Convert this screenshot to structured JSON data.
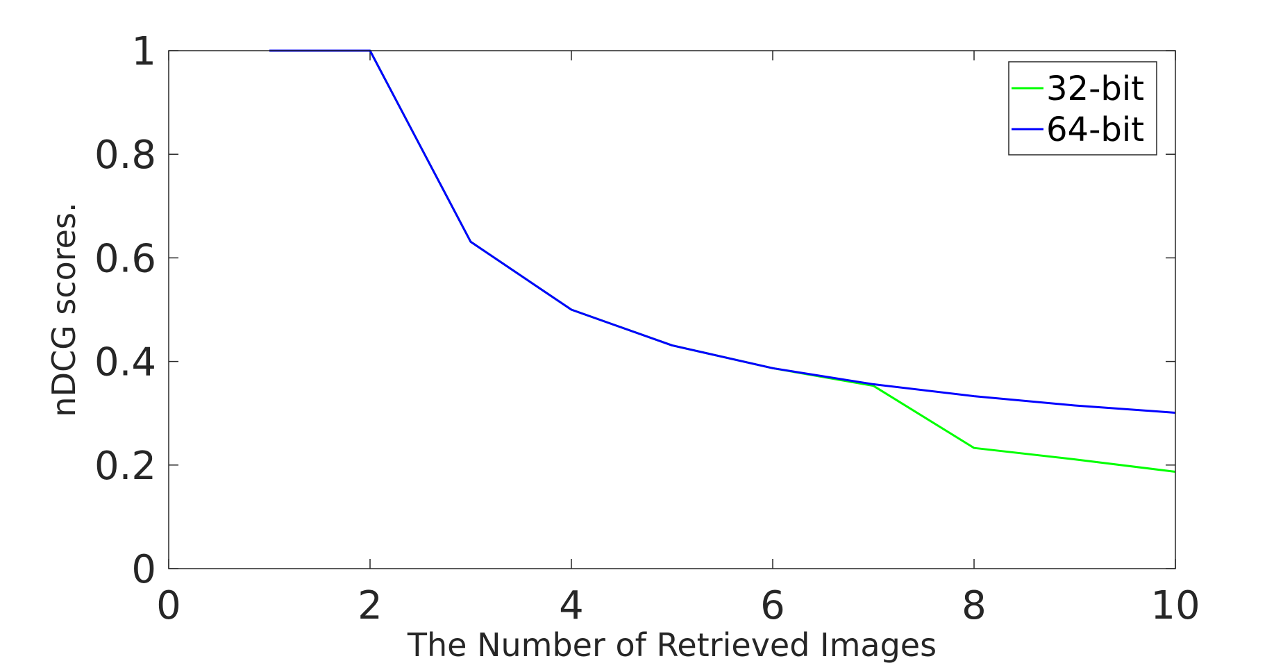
{
  "chart_data": {
    "type": "line",
    "title": "",
    "xlabel": "The Number of Retrieved Images",
    "ylabel": "nDCG scores.",
    "xlim": [
      0,
      10
    ],
    "ylim": [
      0,
      1
    ],
    "xticks": [
      0,
      2,
      4,
      6,
      8,
      10
    ],
    "yticks": [
      0,
      0.2,
      0.4,
      0.6,
      0.8,
      1
    ],
    "xtick_labels": [
      "0",
      "2",
      "4",
      "6",
      "8",
      "10"
    ],
    "ytick_labels": [
      "0",
      "0.2",
      "0.4",
      "0.6",
      "0.8",
      "1"
    ],
    "grid": false,
    "legend_position": "top-right",
    "x": [
      1,
      2,
      3,
      4,
      5,
      6,
      7,
      8,
      9,
      10
    ],
    "series": [
      {
        "name": "32-bit",
        "color": "#00ff00",
        "values": [
          1.0,
          1.0,
          0.631,
          0.5,
          0.431,
          0.387,
          0.353,
          0.233,
          0.211,
          0.187
        ]
      },
      {
        "name": "64-bit",
        "color": "#0000ff",
        "values": [
          1.0,
          1.0,
          0.631,
          0.5,
          0.431,
          0.387,
          0.356,
          0.333,
          0.315,
          0.301
        ]
      }
    ]
  }
}
